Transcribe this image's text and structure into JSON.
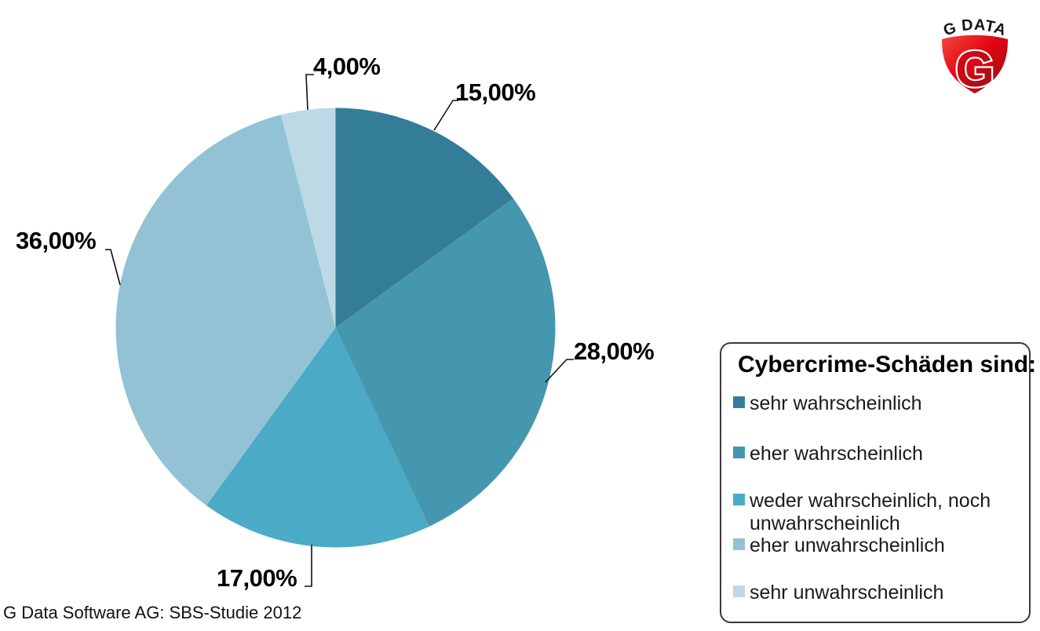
{
  "page": {
    "background": "#ffffff"
  },
  "logo": {
    "brand_text": "G DATA",
    "shield_letter": "G",
    "brand_red": "#e30613"
  },
  "footer": {
    "source_text": "G Data Software AG: SBS-Studie 2012"
  },
  "legend": {
    "title": "Cybercrime-Schäden sind:",
    "items": [
      {
        "label": "sehr wahrscheinlich",
        "color": "#347D98"
      },
      {
        "label": "eher wahrscheinlich",
        "color": "#4497AE"
      },
      {
        "label": "weder wahrscheinlich, noch unwahrscheinlich",
        "color": "#4BAAC5"
      },
      {
        "label": "eher unwahrscheinlich",
        "color": "#93C2D5"
      },
      {
        "label": "sehr unwahrscheinlich",
        "color": "#BDD9E5"
      }
    ]
  },
  "chart_data": {
    "type": "pie",
    "title": "Cybercrime-Schäden sind:",
    "start_angle_deg": 0,
    "direction": "clockwise-from-top",
    "legend_position": "right",
    "source": "G Data Software AG: SBS-Studie 2012",
    "series": [
      {
        "name": "sehr wahrscheinlich",
        "value": 15.0,
        "label": "15,00%",
        "color": "#347D98"
      },
      {
        "name": "eher wahrscheinlich",
        "value": 28.0,
        "label": "28,00%",
        "color": "#4497AE"
      },
      {
        "name": "weder wahrscheinlich, noch unwahrscheinlich",
        "value": 17.0,
        "label": "17,00%",
        "color": "#4BAAC5"
      },
      {
        "name": "eher unwahrscheinlich",
        "value": 36.0,
        "label": "36,00%",
        "color": "#93C2D5"
      },
      {
        "name": "sehr unwahrscheinlich",
        "value": 4.0,
        "label": "4,00%",
        "color": "#BDD9E5"
      }
    ]
  }
}
